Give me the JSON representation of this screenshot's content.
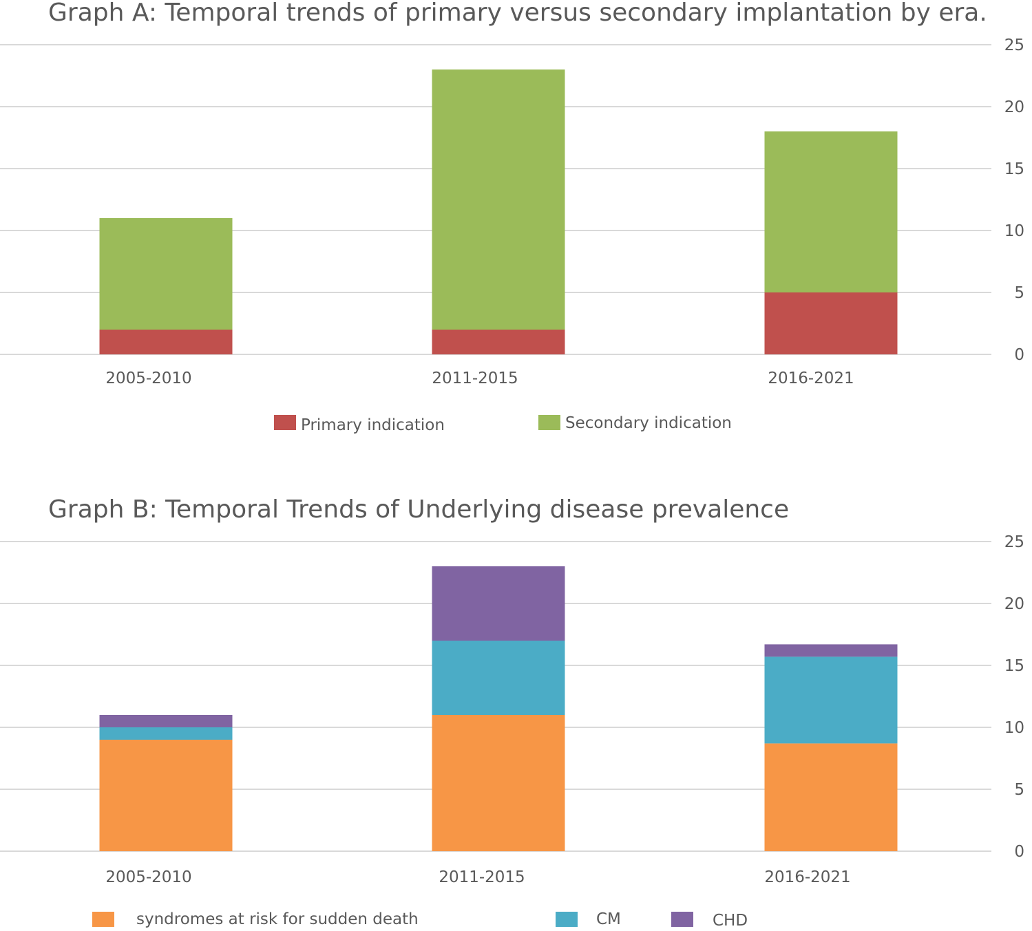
{
  "chart_data": [
    {
      "type": "bar",
      "stacked": true,
      "title": "Graph A: Temporal trends of primary versus secondary implantation by era.",
      "categories": [
        "2005-2010",
        "2011-2015",
        "2016-2021"
      ],
      "series": [
        {
          "name": "Primary indication",
          "values": [
            2,
            2,
            5
          ],
          "color": "#c0504d"
        },
        {
          "name": "Secondary indication",
          "values": [
            9,
            21,
            13
          ],
          "color": "#9bbb59"
        }
      ],
      "ylim": [
        0,
        25
      ],
      "yticks": [
        "0",
        "5",
        "10",
        "15",
        "20",
        "25"
      ],
      "y_axis_side": "right",
      "grid": true,
      "legend_position": "bottom"
    },
    {
      "type": "bar",
      "stacked": true,
      "title": "Graph B: Temporal Trends of Underlying disease prevalence",
      "categories": [
        "2005-2010",
        "2011-2015",
        "2016-2021"
      ],
      "series": [
        {
          "name": "syndromes at risk for sudden death",
          "values": [
            9,
            11,
            8.7
          ],
          "color": "#f79646"
        },
        {
          "name": "CM",
          "values": [
            1,
            6,
            7
          ],
          "color": "#4bacc6"
        },
        {
          "name": "CHD",
          "values": [
            1,
            6,
            1
          ],
          "color": "#8064a2"
        }
      ],
      "ylim": [
        0,
        25
      ],
      "yticks": [
        "0",
        "5",
        "10",
        "15",
        "20",
        "25"
      ],
      "y_axis_side": "right",
      "grid": true,
      "legend_position": "bottom"
    }
  ]
}
